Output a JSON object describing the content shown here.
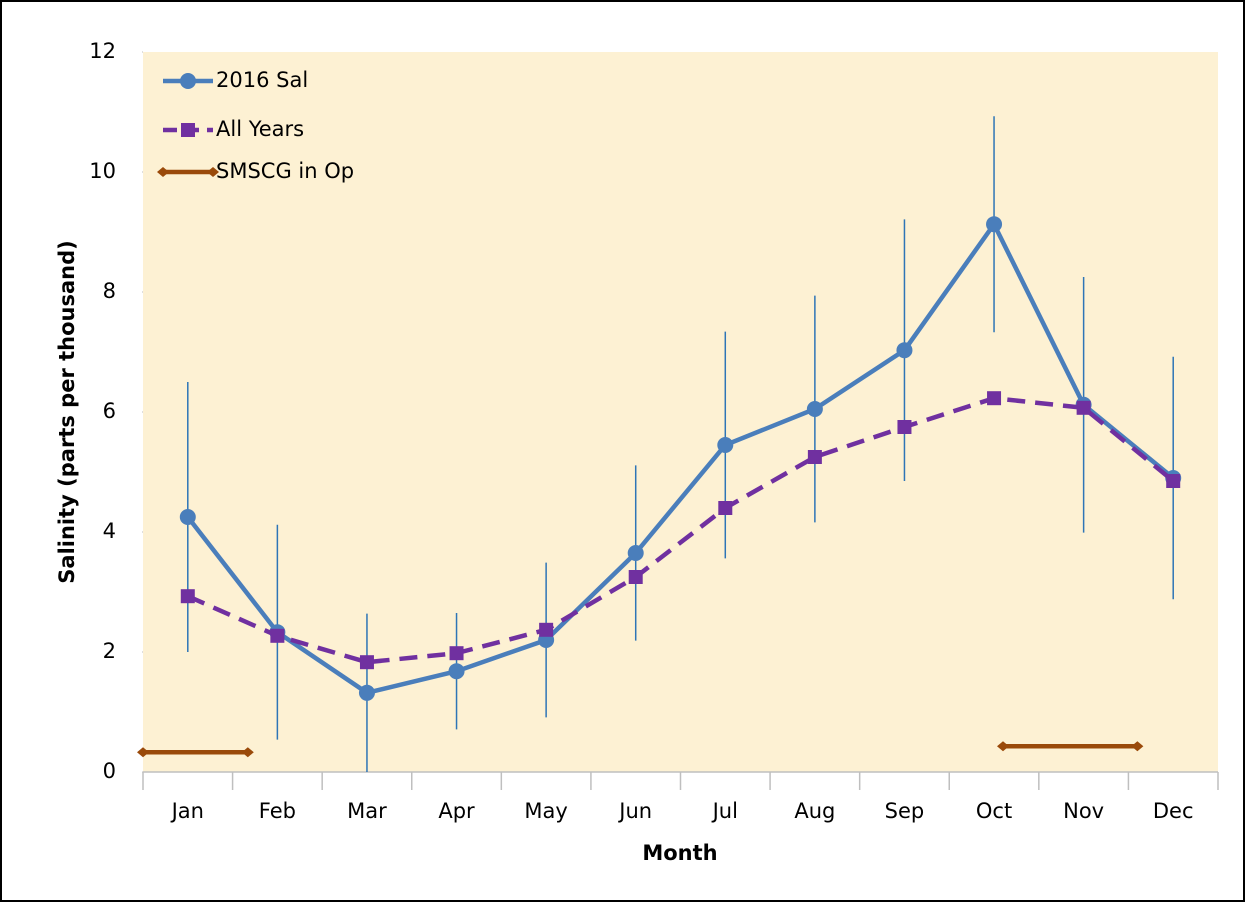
{
  "chart_data": {
    "type": "line",
    "categories": [
      "Jan",
      "Feb",
      "Mar",
      "Apr",
      "May",
      "Jun",
      "Jul",
      "Aug",
      "Sep",
      "Oct",
      "Nov",
      "Dec"
    ],
    "xlabel": "Month",
    "ylabel": "Salinity (parts per thousand)",
    "ylim": [
      0,
      12
    ],
    "yticks": [
      0,
      2,
      4,
      6,
      8,
      10,
      12
    ],
    "legend": "upper left",
    "background": "#fdf1d3",
    "series": [
      {
        "name": "2016 Sal",
        "color": "#4a7ebb",
        "marker": "circle",
        "dash": false,
        "values": [
          4.25,
          2.33,
          1.32,
          1.68,
          2.2,
          3.65,
          5.45,
          6.05,
          7.03,
          9.13,
          6.12,
          4.9
        ],
        "errors": [
          2.25,
          1.79,
          1.32,
          0.97,
          1.29,
          1.46,
          1.89,
          1.89,
          2.18,
          1.8,
          2.13,
          2.02
        ],
        "error_color": "#2e75b6"
      },
      {
        "name": "All Years",
        "color": "#7030a0",
        "marker": "square",
        "dash": true,
        "values": [
          2.93,
          2.27,
          1.83,
          1.98,
          2.37,
          3.25,
          4.4,
          5.25,
          5.75,
          6.23,
          6.07,
          4.85
        ]
      },
      {
        "name": "SMSCG in Op",
        "color": "#9a4a0a",
        "marker": "diamond",
        "dash": false,
        "x": [
          0.5,
          1.67,
          null,
          10.1,
          11.6
        ],
        "values": [
          0.33,
          0.33,
          null,
          0.43,
          0.43
        ]
      }
    ]
  }
}
